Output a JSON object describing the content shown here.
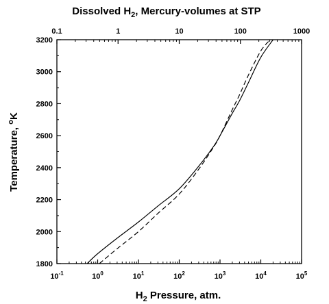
{
  "chart_data": {
    "type": "line",
    "title_main": "Dissolved H",
    "title_sub": "2",
    "title_rest": ", Mercury-volumes at STP",
    "xlabel_main": "H",
    "xlabel_sub": "2",
    "xlabel_rest": " Pressure, atm.",
    "ylabel_main": "Temperature, ",
    "ylabel_sup": "o",
    "ylabel_rest": "K",
    "x_scale": "log",
    "xlim": [
      0.1,
      100000
    ],
    "ylim": [
      1800,
      3200
    ],
    "bottom_ticks": [
      {
        "value": 0.1,
        "base": "10",
        "exp": "-1"
      },
      {
        "value": 1,
        "base": "10",
        "exp": "0"
      },
      {
        "value": 10,
        "base": "10",
        "exp": "1"
      },
      {
        "value": 100,
        "base": "10",
        "exp": "2"
      },
      {
        "value": 1000,
        "base": "10",
        "exp": "3"
      },
      {
        "value": 10000,
        "base": "10",
        "exp": "4"
      },
      {
        "value": 100000,
        "base": "10",
        "exp": "5"
      }
    ],
    "top_xlim": [
      0.1,
      1000
    ],
    "top_ticks": [
      {
        "value": 0.1,
        "label": "0.1"
      },
      {
        "value": 1,
        "label": "1"
      },
      {
        "value": 10,
        "label": "10"
      },
      {
        "value": 100,
        "label": "100"
      },
      {
        "value": 1000,
        "label": "1000"
      }
    ],
    "y_ticks": [
      1800,
      2000,
      2200,
      2400,
      2600,
      2800,
      3000,
      3200
    ],
    "grid": false,
    "series": [
      {
        "style": "solid",
        "x": [
          0.55,
          1,
          3,
          10,
          30,
          100,
          300,
          700,
          1000,
          2000,
          3000,
          5000,
          10000,
          20000
        ],
        "y": [
          1800,
          1862,
          1959,
          2060,
          2160,
          2268,
          2409,
          2534,
          2600,
          2740,
          2818,
          2933,
          3090,
          3200
        ]
      },
      {
        "style": "dashed",
        "x": [
          1.1,
          3,
          10,
          30,
          100,
          300,
          700,
          1000,
          2000,
          3000,
          5000,
          10000,
          17000
        ],
        "y": [
          1800,
          1893,
          2000,
          2114,
          2235,
          2390,
          2530,
          2600,
          2763,
          2855,
          2980,
          3130,
          3200
        ]
      }
    ]
  }
}
